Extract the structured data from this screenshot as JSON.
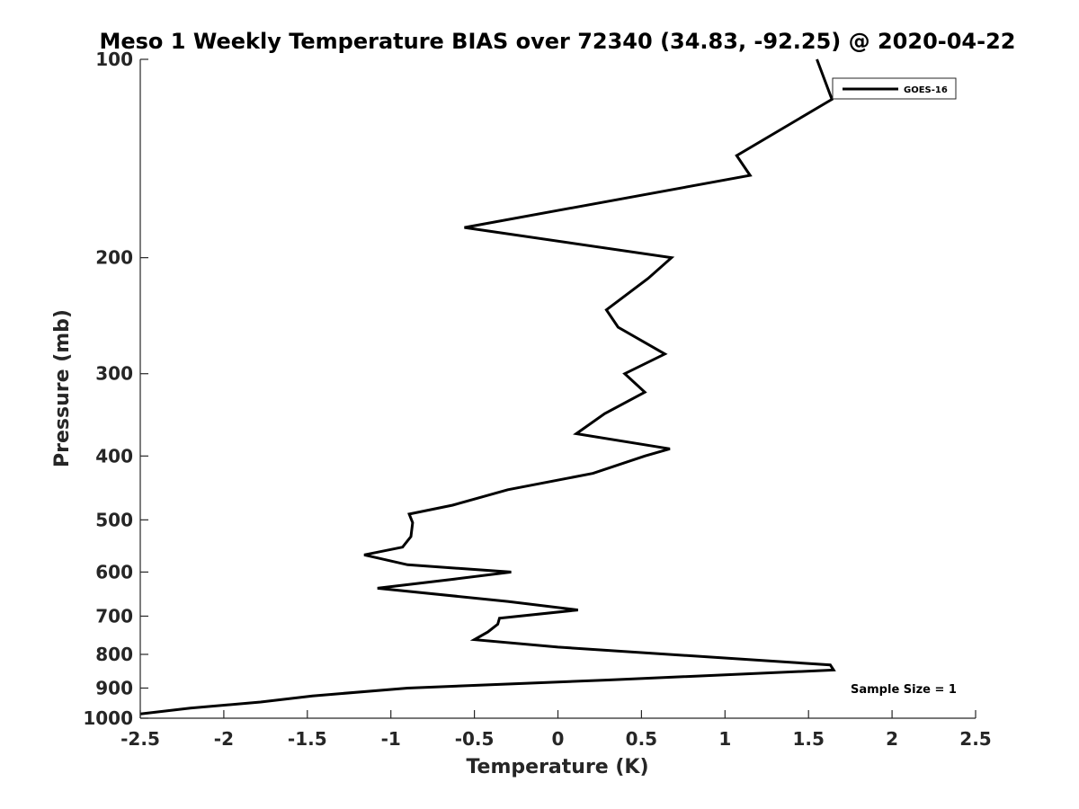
{
  "chart_data": {
    "type": "line",
    "title": "Meso 1 Weekly Temperature BIAS over 72340 (34.83, -92.25) @ 2020-04-22",
    "xlabel": "Temperature (K)",
    "ylabel": "Pressure (mb)",
    "xlim": [
      -2.5,
      2.5
    ],
    "ylim": [
      100,
      1000
    ],
    "y_scale": "log",
    "y_reversed": true,
    "x_ticks": [
      -2.5,
      -2,
      -1.5,
      -1,
      -0.5,
      0,
      0.5,
      1,
      1.5,
      2,
      2.5
    ],
    "x_tick_labels": [
      "-2.5",
      "-2",
      "-1.5",
      "-1",
      "-0.5",
      "0",
      "0.5",
      "1",
      "1.5",
      "2",
      "2.5"
    ],
    "y_ticks": [
      100,
      200,
      300,
      400,
      500,
      600,
      700,
      800,
      900,
      1000
    ],
    "y_tick_labels": [
      "100",
      "200",
      "300",
      "400",
      "500",
      "600",
      "700",
      "800",
      "900",
      "1000"
    ],
    "grid": false,
    "legend_position": "top-right",
    "series": [
      {
        "name": "GOES-16",
        "color": "#000000",
        "x": [
          1.55,
          1.64,
          1.07,
          1.15,
          -0.56,
          0.68,
          0.54,
          0.29,
          0.36,
          0.64,
          0.4,
          0.52,
          0.28,
          0.11,
          0.67,
          0.52,
          0.21,
          -0.3,
          -0.63,
          -0.89,
          -0.87,
          -0.88,
          -0.93,
          -1.16,
          -0.9,
          -0.28,
          -0.62,
          -1.08,
          -0.3,
          0.12,
          -0.35,
          -0.36,
          -0.42,
          -0.5,
          0.0,
          1.63,
          1.65,
          0.3,
          -0.9,
          -1.47,
          -1.78,
          -2.2,
          -2.5
        ],
        "y": [
          100,
          115,
          140,
          150,
          180,
          200,
          215,
          240,
          255,
          280,
          300,
          320,
          345,
          370,
          390,
          400,
          425,
          450,
          475,
          490,
          505,
          530,
          550,
          565,
          585,
          600,
          615,
          635,
          665,
          685,
          705,
          720,
          740,
          760,
          780,
          830,
          845,
          875,
          900,
          925,
          945,
          965,
          985
        ]
      }
    ],
    "annotations": [
      "Sample Size = 1"
    ]
  },
  "colors": {
    "line": "#000000",
    "axis": "#262626",
    "background": "#ffffff"
  }
}
